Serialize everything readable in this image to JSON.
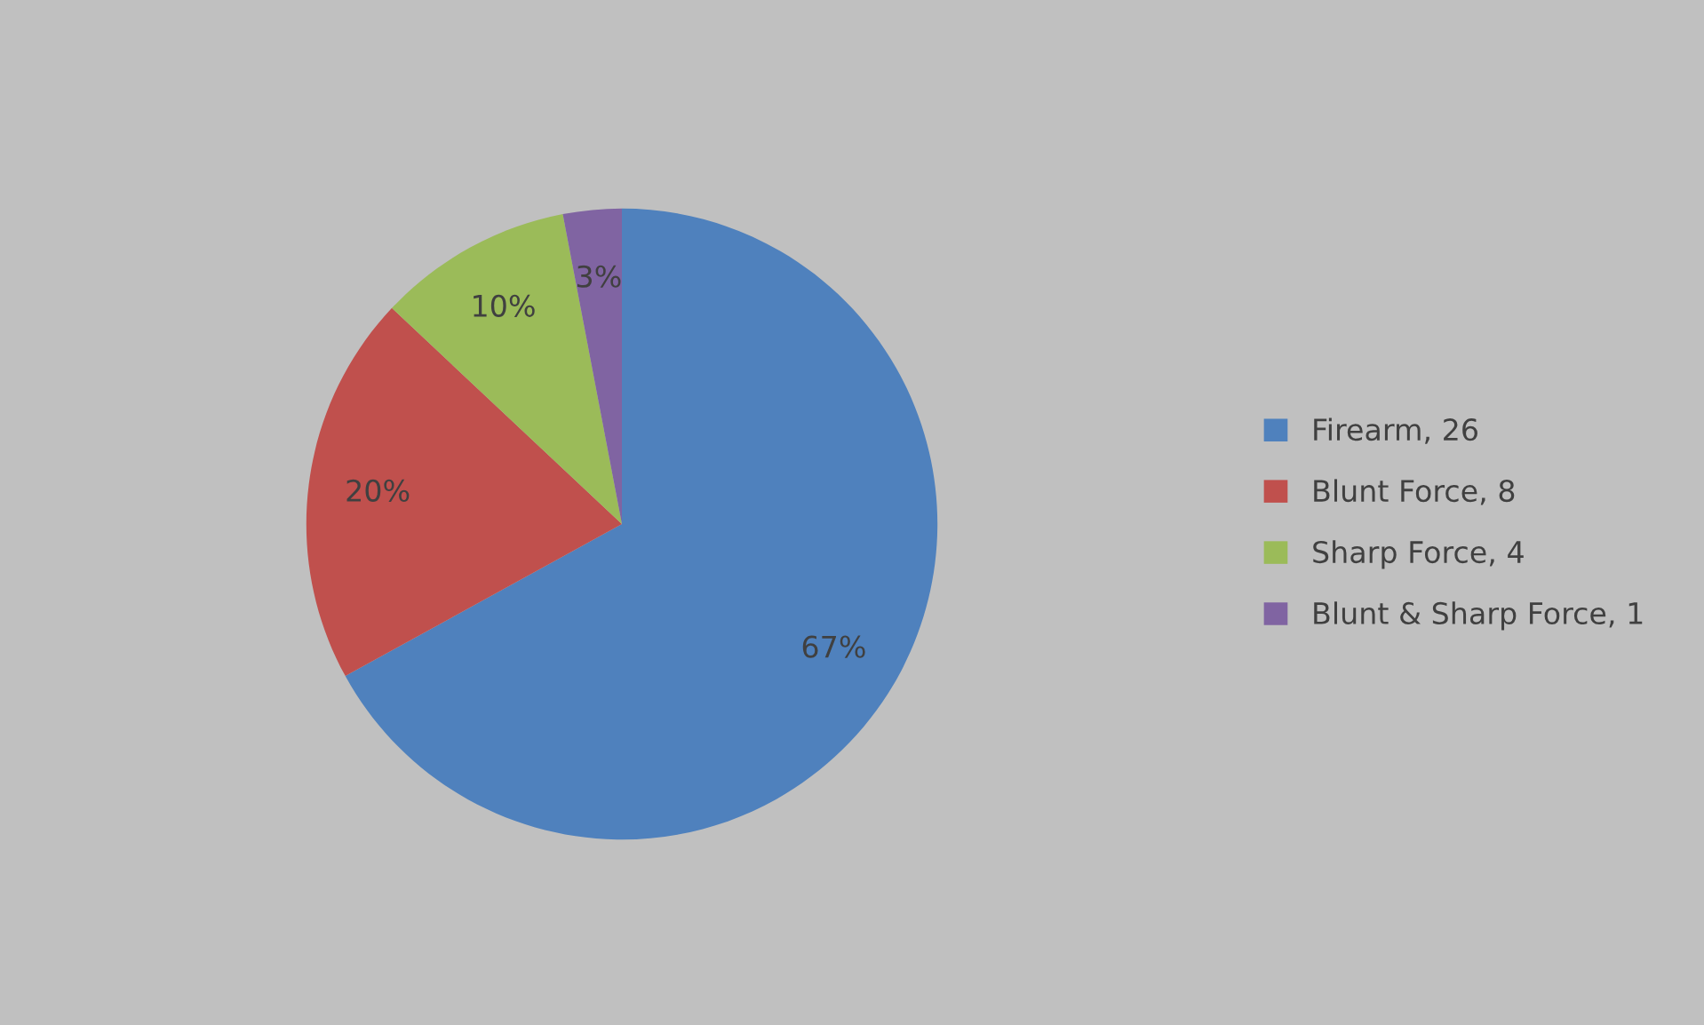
{
  "chart_data": {
    "type": "pie",
    "categories": [
      "Firearm, 26",
      "Blunt Force, 8",
      "Sharp Force, 4",
      "Blunt & Sharp Force, 1"
    ],
    "values": [
      67,
      20,
      10,
      3
    ],
    "value_labels": [
      "67%",
      "20%",
      "10%",
      "3%"
    ],
    "colors": [
      "#4f81bd",
      "#c0504d",
      "#9bbb59",
      "#8064a2"
    ],
    "legend": "right"
  }
}
